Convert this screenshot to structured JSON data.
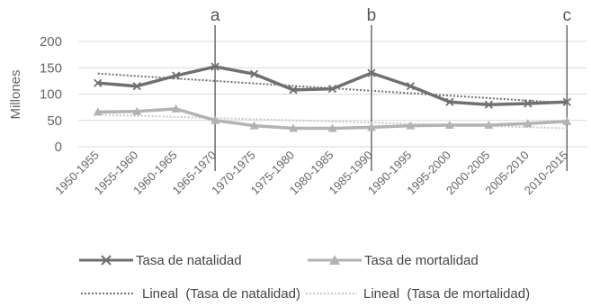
{
  "chart_data": {
    "type": "line",
    "ylabel": "Millones",
    "xlabel": "",
    "ylim": [
      0,
      200
    ],
    "yticks": [
      0,
      50,
      100,
      150,
      200
    ],
    "grid": true,
    "legend_position": "bottom",
    "categories": [
      "1950-1955",
      "1955-1960",
      "1960-1965",
      "1965-1970",
      "1970-1975",
      "1975-1980",
      "1980-1985",
      "1985-1990",
      "1990-1995",
      "1995-2000",
      "2000-2005",
      "2005-2010",
      "2010-2015"
    ],
    "series": [
      {
        "name": "Tasa de natalidad",
        "marker": "x",
        "color": "#707070",
        "values": [
          121,
          115,
          135,
          152,
          138,
          108,
          110,
          140,
          115,
          85,
          80,
          82,
          85
        ]
      },
      {
        "name": "Tasa de mortalidad",
        "marker": "triangle",
        "color": "#b3b3b3",
        "values": [
          66,
          67,
          72,
          50,
          40,
          35,
          35,
          37,
          40,
          41,
          41,
          44,
          48
        ]
      }
    ],
    "trendlines": [
      {
        "name": "Lineal  (Tasa de natalidad)",
        "color": "#707070",
        "start": 139,
        "end": 83
      },
      {
        "name": "Lineal  (Tasa de mortalidad)",
        "color": "#c8c8c8",
        "start": 61,
        "end": 35
      }
    ],
    "annotations": [
      {
        "label": "a",
        "category": "1965-1970"
      },
      {
        "label": "b",
        "category": "1985-1990"
      },
      {
        "label": "c",
        "category": "2010-2015"
      }
    ]
  }
}
